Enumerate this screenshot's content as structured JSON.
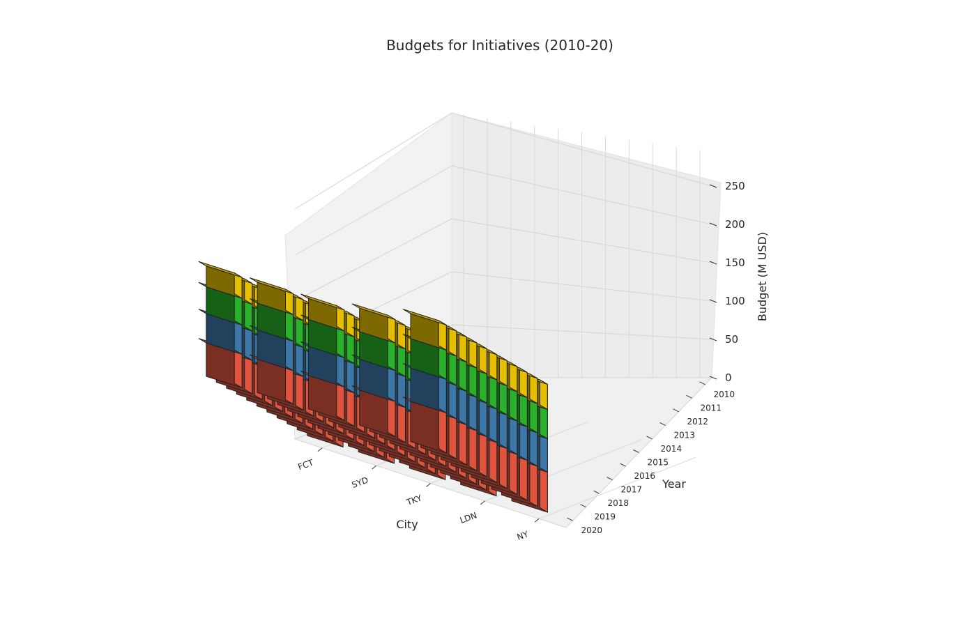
{
  "chart_data": {
    "type": "bar",
    "subtype": "3d-stacked-bar",
    "title": "Budgets for Initiatives (2010-20)",
    "xlabel": "City",
    "ylabel": "Year",
    "zlabel": "Budget (M USD)",
    "cities": [
      "FCT",
      "SYD",
      "TKY",
      "LDN",
      "NY"
    ],
    "years": [
      "2010",
      "2011",
      "2012",
      "2013",
      "2014",
      "2015",
      "2016",
      "2017",
      "2018",
      "2019",
      "2020"
    ],
    "zticks": [
      "0",
      "50",
      "100",
      "150",
      "200",
      "250"
    ],
    "zlim": [
      0,
      260
    ],
    "grid": true,
    "series_colors": [
      "#e0533d",
      "#3d77a8",
      "#2ab02a",
      "#e5be00"
    ],
    "stack_segments_per_city": [
      [
        40,
        35,
        32,
        25
      ],
      [
        40,
        35,
        32,
        25
      ],
      [
        40,
        35,
        32,
        25
      ],
      [
        42,
        37,
        33,
        28
      ],
      [
        48,
        40,
        35,
        30
      ]
    ]
  }
}
